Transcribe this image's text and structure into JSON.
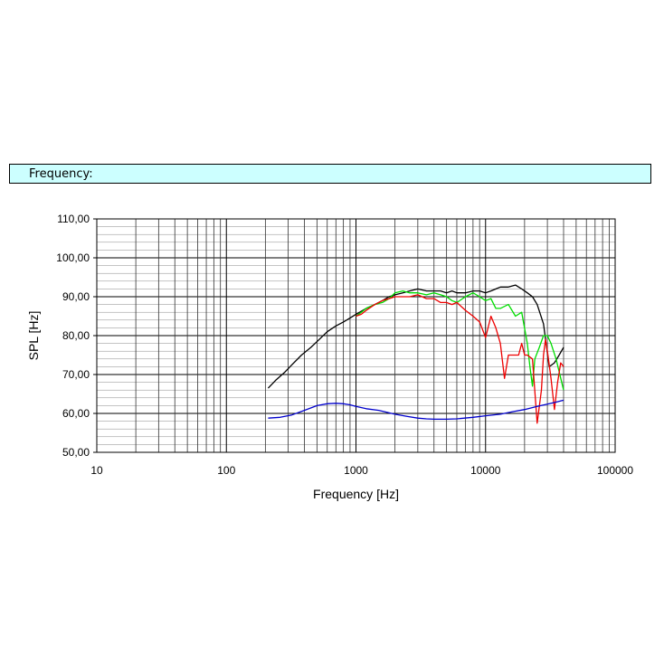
{
  "header": {
    "label": "Frequency:"
  },
  "chart_data": {
    "type": "line",
    "xlabel": "Frequency [Hz]",
    "ylabel": "SPL [Hz]",
    "xscale": "log",
    "xlim": [
      10,
      100000
    ],
    "ylim": [
      50,
      110
    ],
    "x_ticks": [
      "10",
      "100",
      "1000",
      "10000",
      "100000"
    ],
    "y_ticks": [
      "50,00",
      "60,00",
      "70,00",
      "80,00",
      "90,00",
      "100,00",
      "110,00"
    ],
    "grid": true,
    "series": [
      {
        "color": "#000000",
        "x": [
          210,
          240,
          280,
          320,
          380,
          450,
          520,
          600,
          700,
          800,
          900,
          1000,
          1200,
          1400,
          1600,
          1800,
          2000,
          2300,
          2600,
          3000,
          3500,
          4000,
          4500,
          5000,
          5500,
          6000,
          7000,
          8000,
          9000,
          10000,
          11000,
          12000,
          13000,
          15000,
          17000,
          19000,
          21000,
          23000,
          25000,
          28000,
          31000,
          34000,
          37000,
          40000
        ],
        "y": [
          66.5,
          68.5,
          70.5,
          72.5,
          75,
          77,
          79,
          81,
          82.5,
          83.5,
          84.5,
          85.5,
          87,
          88,
          89,
          90,
          90.5,
          91,
          91.5,
          92,
          91.5,
          91.5,
          91.5,
          91,
          91.5,
          91,
          91,
          91.5,
          91.5,
          91,
          91.5,
          92,
          92.5,
          92.5,
          93,
          92,
          91,
          90,
          88,
          83,
          72,
          73,
          75,
          77
        ]
      },
      {
        "color": "#00dd00",
        "x": [
          1000,
          1100,
          1200,
          1400,
          1600,
          1800,
          2000,
          2300,
          2600,
          3000,
          3500,
          4000,
          4500,
          5000,
          5500,
          6000,
          7000,
          8000,
          9000,
          10000,
          11000,
          12000,
          13000,
          15000,
          17000,
          19000,
          21000,
          22000,
          23000,
          24000,
          26000,
          28000,
          30000,
          32000,
          35000,
          40000
        ],
        "y": [
          85,
          86,
          87,
          88,
          88.5,
          89.5,
          91,
          91.5,
          91,
          91,
          90.5,
          91,
          90.5,
          90,
          89,
          88.5,
          90,
          91,
          90,
          89,
          89.5,
          87,
          87,
          88,
          85,
          86,
          78,
          72,
          67,
          74,
          77,
          80,
          80,
          78,
          74,
          66
        ]
      },
      {
        "color": "#ee0000",
        "x": [
          1000,
          1100,
          1200,
          1400,
          1600,
          1800,
          2000,
          2300,
          2600,
          3000,
          3500,
          4000,
          4500,
          5000,
          5500,
          6000,
          7000,
          8000,
          9000,
          10000,
          11000,
          12000,
          13000,
          14000,
          15000,
          17000,
          18000,
          19000,
          20000,
          21000,
          23000,
          25000,
          27000,
          28000,
          29000,
          30000,
          32000,
          34000,
          36000,
          38000,
          40000
        ],
        "y": [
          85,
          85.5,
          86.5,
          88,
          89,
          89.5,
          90,
          90,
          90,
          90.5,
          89.5,
          89.5,
          88.5,
          88.5,
          88,
          88.5,
          86.5,
          85,
          83.5,
          79.5,
          85,
          82,
          78,
          69,
          75,
          75,
          75,
          78,
          75,
          75,
          74,
          57.5,
          66,
          75,
          79,
          76,
          69,
          61,
          68,
          73,
          72
        ]
      },
      {
        "color": "#0000cc",
        "x": [
          210,
          260,
          320,
          400,
          500,
          600,
          700,
          800,
          900,
          1000,
          1200,
          1500,
          2000,
          2500,
          3000,
          3500,
          4000,
          5000,
          6000,
          8000,
          10000,
          13000,
          16000,
          20000,
          25000,
          30000,
          35000,
          40000
        ],
        "y": [
          58.8,
          59,
          59.6,
          60.8,
          62,
          62.5,
          62.6,
          62.5,
          62.2,
          61.8,
          61.2,
          60.8,
          59.8,
          59.2,
          58.8,
          58.6,
          58.5,
          58.5,
          58.6,
          59,
          59.4,
          59.8,
          60.4,
          61,
          61.8,
          62.4,
          62.9,
          63.4
        ]
      }
    ]
  }
}
